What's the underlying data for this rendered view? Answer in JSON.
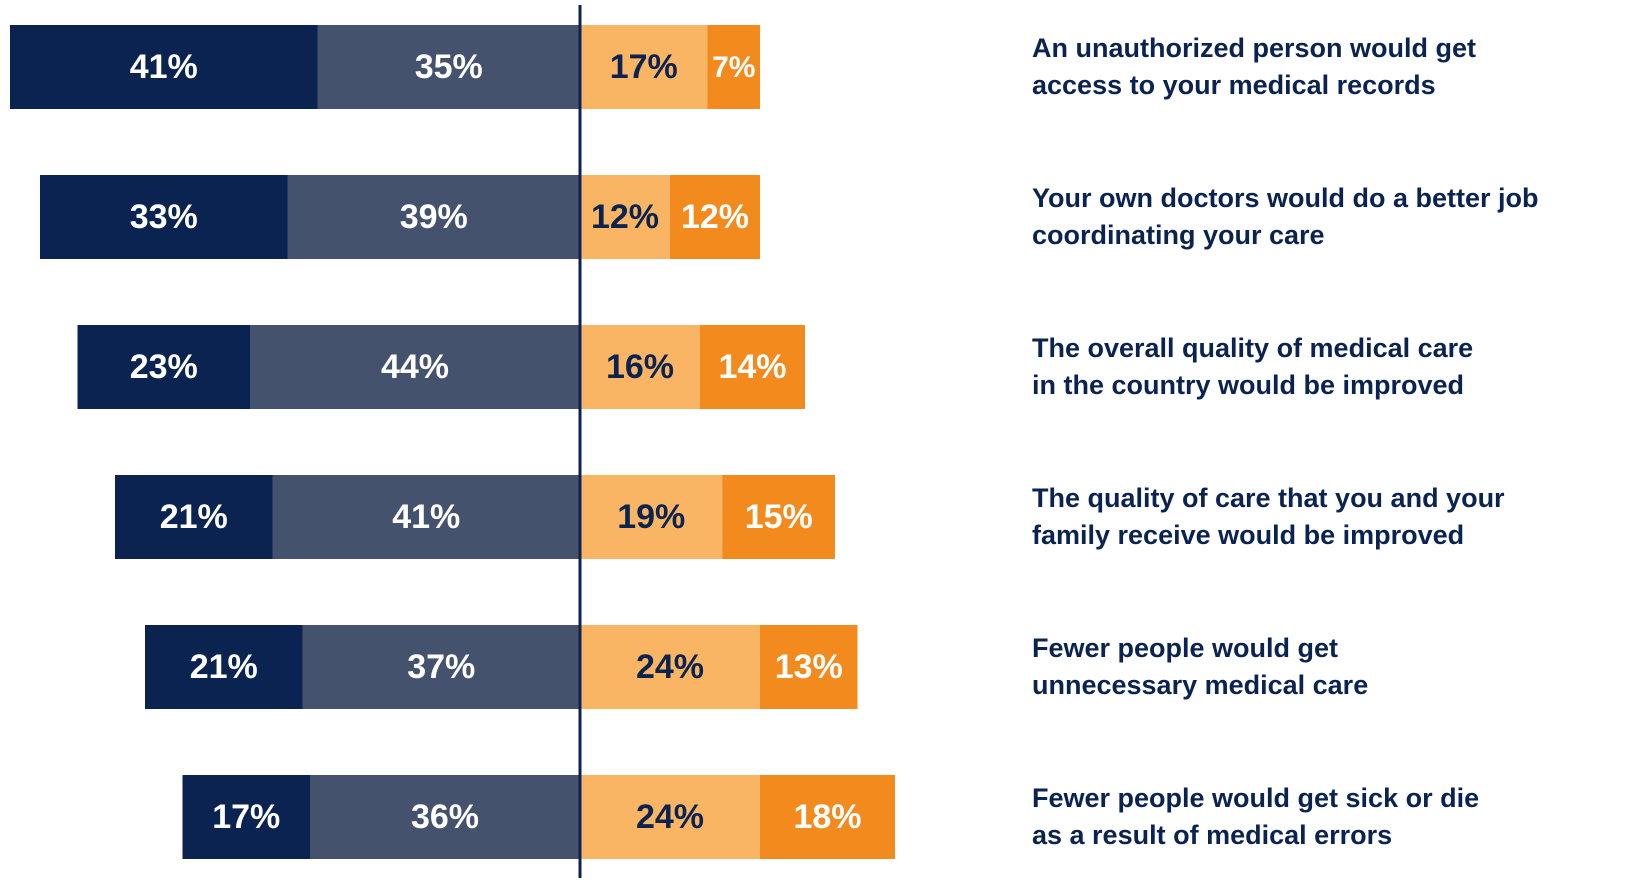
{
  "chart_data": {
    "type": "diverging_bar",
    "categories": [
      "An unauthorized person would get\naccess to your medical records",
      "Your own doctors would do a better job\ncoordinating your care",
      "The overall quality of medical care\nin the country would be improved",
      "The quality of care that you and your\nfamily receive would be improved",
      "Fewer people would get\nunnecessary medical care",
      "Fewer people would get sick or die\nas a result of medical errors"
    ],
    "series": [
      {
        "color": "#0b2350",
        "label_color": "#ffffff",
        "values": [
          41,
          33,
          23,
          21,
          21,
          17
        ],
        "value_labels": [
          "41%",
          "33%",
          "23%",
          "21%",
          "21%",
          "17%"
        ]
      },
      {
        "color": "#45526e",
        "label_color": "#ffffff",
        "values": [
          35,
          39,
          44,
          41,
          37,
          36
        ],
        "value_labels": [
          "35%",
          "39%",
          "44%",
          "41%",
          "37%",
          "36%"
        ]
      },
      {
        "color": "#f9b464",
        "label_color": "#0b2350",
        "values": [
          17,
          12,
          16,
          19,
          24,
          24
        ],
        "value_labels": [
          "17%",
          "12%",
          "16%",
          "19%",
          "24%",
          "24%"
        ]
      },
      {
        "color": "#f28a1e",
        "label_color": "#ffffff",
        "values": [
          7,
          12,
          14,
          15,
          13,
          18
        ],
        "value_labels": [
          "7%",
          "12%",
          "14%",
          "15%",
          "13%",
          "18%"
        ]
      }
    ]
  }
}
